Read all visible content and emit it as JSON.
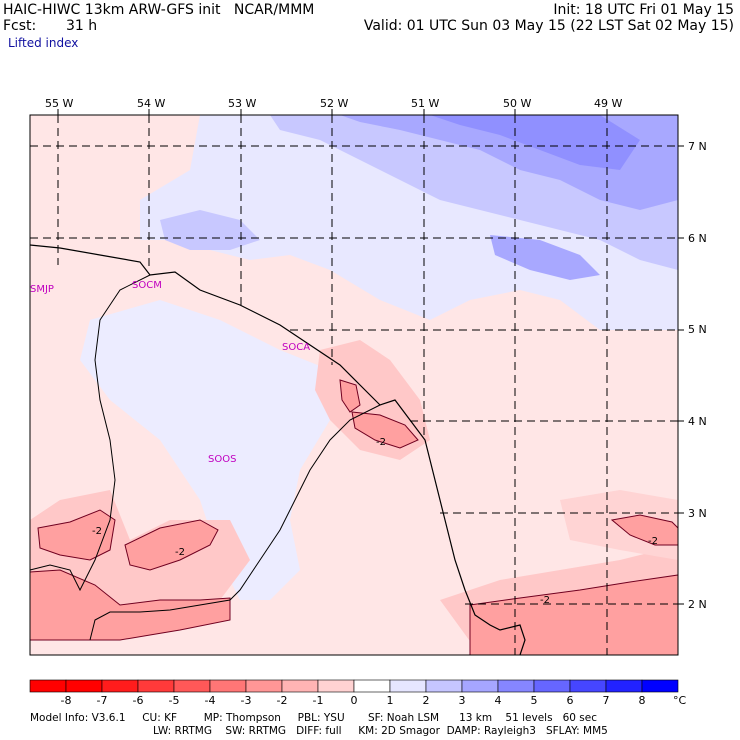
{
  "header": {
    "title": "HAIC-HIWC 13km ARW-GFS init   NCAR/MMM",
    "init": "Init: 18 UTC Fri 01 May 15",
    "fcst_label": "Fcst:",
    "fcst_value": "31 h",
    "valid": "Valid: 01 UTC Sun 03 May 15 (22 LST Sat 02 May 15)",
    "field": "Lifted index"
  },
  "map": {
    "lon_labels": [
      "55 W",
      "54 W",
      "53 W",
      "52 W",
      "51 W",
      "50 W",
      "49 W"
    ],
    "lat_labels": [
      "7 N",
      "6 N",
      "5 N",
      "4 N",
      "3 N",
      "2 N"
    ],
    "stations": [
      "SMJP",
      "SOCM",
      "SOCA",
      "SOOS"
    ],
    "contour_labels": [
      "-2",
      "-2",
      "-2",
      "-2",
      "-2"
    ]
  },
  "colorbar": {
    "labels": [
      "-8",
      "-7",
      "-6",
      "-5",
      "-4",
      "-3",
      "-2",
      "-1",
      "0",
      "1",
      "2",
      "3",
      "4",
      "5",
      "6",
      "7",
      "8"
    ],
    "unit": "°C",
    "colors": [
      "#ff0000",
      "#ff1c1c",
      "#ff3a3a",
      "#ff5858",
      "#ff7676",
      "#ff9696",
      "#ffb4b4",
      "#ffd2d2",
      "#ffffff",
      "#e6e6ff",
      "#c6c6ff",
      "#a6a6ff",
      "#8686ff",
      "#6666ff",
      "#4646ff",
      "#2222ff",
      "#0000ff"
    ]
  },
  "footer": {
    "line1": "Model Info: V3.6.1     CU: KF        MP: Thompson     PBL: YSU       SF: Noah LSM      13 km    51 levels   60 sec",
    "line2": "LW: RRTMG    SW: RRTMG   DIFF: full     KM: 2D Smagor  DAMP: Rayleigh3   SFLAY: MM5"
  }
}
